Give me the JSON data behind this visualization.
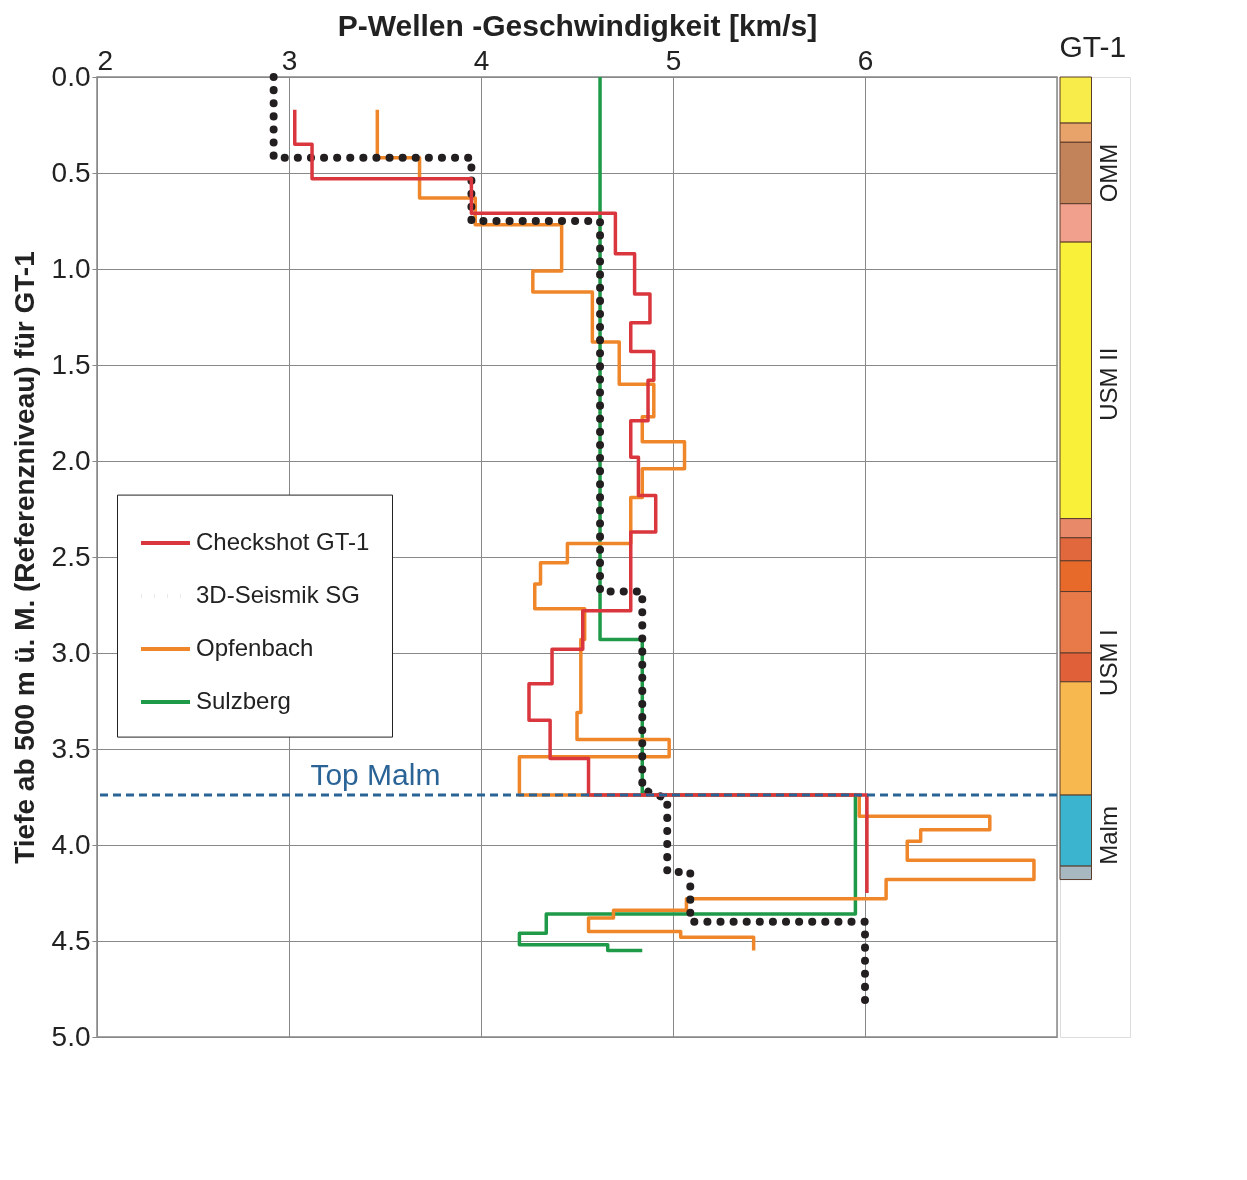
{
  "chart_data": [
    {
      "type": "line",
      "xlabel": "P-Wellen -Geschwindigkeit [km/s]",
      "ylabel": "Tiefe ab 500 m ü. M. (Referenzniveau) für GT-1",
      "xlim": [
        2,
        7
      ],
      "xticks": [
        2,
        3,
        4,
        5,
        6
      ],
      "ylim": [
        5.0,
        0.0
      ],
      "yticks": [
        {
          "value": 0,
          "label": "0.0"
        },
        0.5,
        {
          "value": 1,
          "label": "1.0"
        },
        1.5,
        {
          "value": 2,
          "label": "2.0"
        },
        2.5,
        {
          "value": 3,
          "label": "3.0"
        },
        3.5,
        {
          "value": 4,
          "label": "4.0"
        },
        4.5,
        {
          "value": 5,
          "label": "5.0"
        }
      ],
      "grid": true,
      "legend": "left",
      "ref_lines": [
        {
          "axis": "y",
          "value": 3.74,
          "label": "Top Malm",
          "color": "#2a6496",
          "line_style": "dashed"
        }
      ],
      "series": [
        {
          "name": "Checkshot GT-1",
          "color": "#d9363e",
          "line_style": "solid",
          "x": [
            3.03,
            3.03,
            3.12,
            3.12,
            3.95,
            3.95,
            4.7,
            4.7,
            4.8,
            4.8,
            4.88,
            4.88,
            4.78,
            4.78,
            4.9,
            4.9,
            4.87,
            4.87,
            4.78,
            4.78,
            4.82,
            4.82,
            4.91,
            4.91,
            4.78,
            4.78,
            4.53,
            4.53,
            4.37,
            4.37,
            4.25,
            4.25,
            4.36,
            4.36,
            4.56,
            4.56,
            6.01,
            6.01
          ],
          "values": [
            0.17,
            0.35,
            0.35,
            0.53,
            0.53,
            0.71,
            0.71,
            0.92,
            0.92,
            1.13,
            1.13,
            1.28,
            1.28,
            1.43,
            1.43,
            1.58,
            1.58,
            1.79,
            1.79,
            1.98,
            1.98,
            2.18,
            2.18,
            2.37,
            2.37,
            2.78,
            2.78,
            2.98,
            2.98,
            3.16,
            3.16,
            3.35,
            3.35,
            3.55,
            3.55,
            3.74,
            3.74,
            4.25
          ]
        },
        {
          "name": "3D-Seismik SG",
          "color": "#231f20",
          "line_style": "dotted",
          "x": [
            2.92,
            2.92,
            3.95,
            3.95,
            4.62,
            4.62,
            4.84,
            4.84,
            4.97,
            4.97,
            5.09,
            5.09,
            6.0,
            6.0
          ],
          "values": [
            0.0,
            0.42,
            0.42,
            0.75,
            0.75,
            2.68,
            2.68,
            3.71,
            3.76,
            4.14,
            4.14,
            4.4,
            4.4,
            4.84
          ]
        },
        {
          "name": "Opfenbach",
          "color": "#f0862a",
          "line_style": "solid",
          "x": [
            3.46,
            3.46,
            3.68,
            3.68,
            3.97,
            3.97,
            4.42,
            4.42,
            4.27,
            4.27,
            4.58,
            4.58,
            4.72,
            4.72,
            4.9,
            4.9,
            4.84,
            4.84,
            5.06,
            5.06,
            4.84,
            4.84,
            4.78,
            4.78,
            4.45,
            4.45,
            4.31,
            4.31,
            4.28,
            4.28,
            4.54,
            4.54,
            4.52,
            4.52,
            4.5,
            4.5,
            4.98,
            4.98,
            4.2,
            4.2,
            5.97,
            5.97,
            6.65,
            6.65,
            6.29,
            6.29,
            6.22,
            6.22,
            6.88,
            6.88,
            6.11,
            6.11,
            5.07,
            5.07,
            4.69,
            4.69,
            4.56,
            4.56,
            5.04,
            5.04,
            5.42,
            5.42
          ],
          "values": [
            0.17,
            0.42,
            0.42,
            0.63,
            0.63,
            0.77,
            0.77,
            1.01,
            1.01,
            1.12,
            1.12,
            1.38,
            1.38,
            1.6,
            1.6,
            1.77,
            1.77,
            1.9,
            1.9,
            2.04,
            2.04,
            2.19,
            2.19,
            2.43,
            2.43,
            2.53,
            2.53,
            2.64,
            2.64,
            2.77,
            2.77,
            2.93,
            2.93,
            3.31,
            3.31,
            3.45,
            3.45,
            3.54,
            3.54,
            3.74,
            3.74,
            3.85,
            3.85,
            3.92,
            3.92,
            3.98,
            3.98,
            4.08,
            4.08,
            4.18,
            4.18,
            4.28,
            4.28,
            4.34,
            4.34,
            4.38,
            4.38,
            4.45,
            4.45,
            4.48,
            4.48,
            4.55
          ]
        },
        {
          "name": "Sulzberg",
          "color": "#1f9a48",
          "line_style": "solid",
          "x": [
            4.62,
            4.62,
            4.84,
            4.84,
            5.95,
            5.95,
            4.34,
            4.34,
            4.2,
            4.2,
            4.66,
            4.66,
            4.84
          ],
          "values": [
            0.0,
            2.93,
            2.93,
            3.74,
            3.74,
            4.36,
            4.36,
            4.46,
            4.46,
            4.52,
            4.52,
            4.55,
            4.55
          ]
        }
      ]
    },
    {
      "type": "bar",
      "title": "GT-1",
      "stacked": true,
      "categories": [
        null
      ],
      "ylim": [
        5.0,
        0.0
      ],
      "tick_labels": false,
      "annotations": [
        "OMM",
        "USM II",
        "USM I",
        "Malm"
      ],
      "series": [
        {
          "color": "#f7ec4a",
          "values": [
            0.24
          ]
        },
        {
          "color": "#e8a36a",
          "values": [
            0.1
          ]
        },
        {
          "color": "#c2835a",
          "values": [
            0.32
          ]
        },
        {
          "color": "#f0a08c",
          "values": [
            0.2
          ]
        },
        {
          "color": "#f9f03a",
          "values": [
            1.44
          ]
        },
        {
          "color": "#e88a6a",
          "values": [
            0.1
          ]
        },
        {
          "color": "#e0683c",
          "values": [
            0.12
          ]
        },
        {
          "color": "#e86a2a",
          "values": [
            0.16
          ]
        },
        {
          "color": "#e87a4a",
          "values": [
            0.32
          ]
        },
        {
          "color": "#e0603a",
          "values": [
            0.15
          ]
        },
        {
          "color": "#f8b850",
          "values": [
            0.59
          ]
        },
        {
          "color": "#3ab4cf",
          "values": [
            0.37
          ]
        },
        {
          "color": "#a8b8c0",
          "values": [
            0.07
          ]
        }
      ]
    }
  ]
}
